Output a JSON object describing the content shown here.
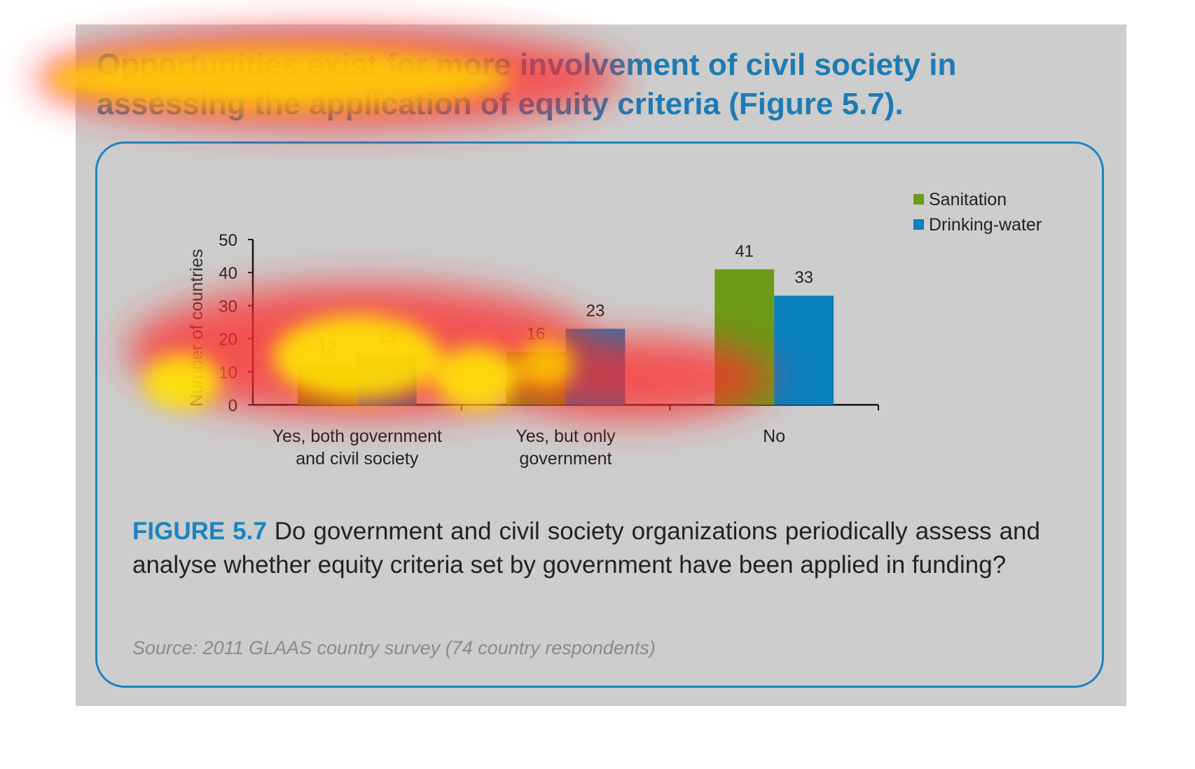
{
  "headline": "Opportunities exist for more involvement of civil society in assessing the application of equity criteria (Figure 5.7).",
  "caption": {
    "figure_label": "FIGURE 5.7",
    "text": "Do government and civil society organizations periodically assess and analyse whether equity criteria set by government have been applied in funding?"
  },
  "source": "Source: 2011 GLAAS country survey (74 country respondents)",
  "colors": {
    "sanitation": "#6e9a1a",
    "drinking_water": "#0a80bd",
    "accent": "#1a84bf"
  },
  "chart_data": {
    "type": "bar",
    "categories": [
      [
        "Yes, both government",
        "and civil society"
      ],
      [
        "Yes, but only",
        "government"
      ],
      [
        "No"
      ]
    ],
    "series": [
      {
        "name": "Sanitation",
        "values": [
          12,
          16,
          41
        ]
      },
      {
        "name": "Drinking-water",
        "values": [
          15,
          23,
          33
        ]
      }
    ],
    "ylabel": "Number of countries",
    "ylim": [
      0,
      50
    ],
    "yticks": [
      0,
      10,
      20,
      30,
      40,
      50
    ],
    "grid": false,
    "legend": "top-right",
    "data_labels": true
  }
}
